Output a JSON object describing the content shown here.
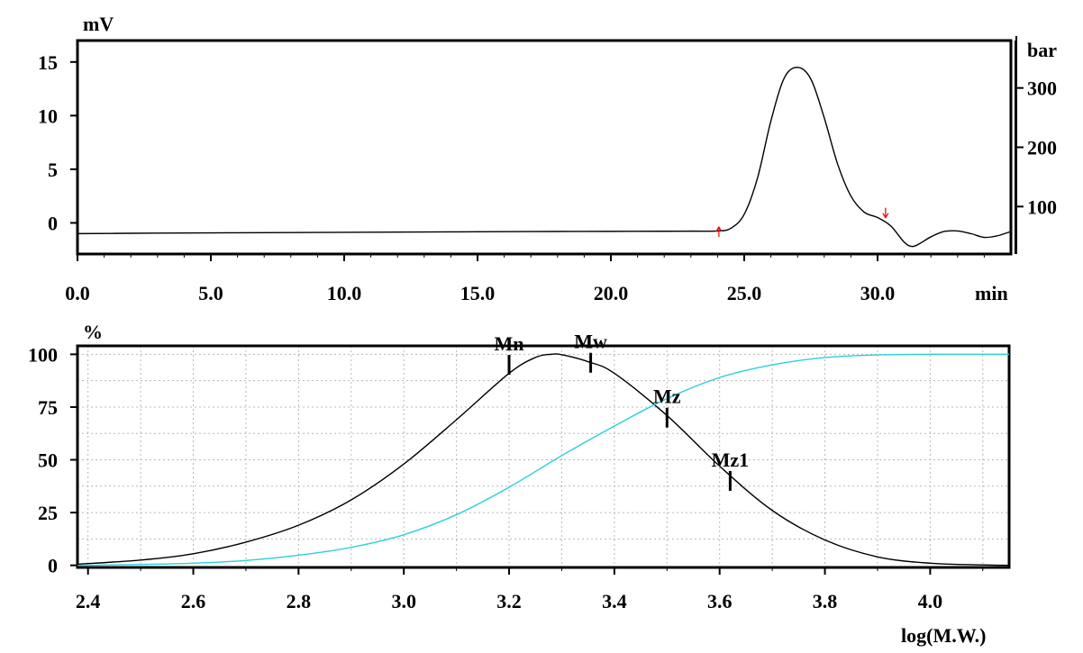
{
  "chart_data": [
    {
      "type": "line",
      "ylabel": "mV",
      "xlabel": "min",
      "y2label": "bar",
      "xlim": [
        0,
        35
      ],
      "ylim": [
        -2.9,
        17
      ],
      "y2lim": [
        20,
        380
      ],
      "xticks": [
        "0.0",
        "5.0",
        "10.0",
        "15.0",
        "20.0",
        "25.0",
        "30.0"
      ],
      "xtick_values": [
        0,
        5,
        10,
        15,
        20,
        25,
        30
      ],
      "yticks": [
        "15",
        "10",
        "5",
        "0"
      ],
      "ytick_values": [
        15,
        10,
        5,
        0
      ],
      "y2ticks": [
        "300",
        "200",
        "100"
      ],
      "y2tick_values": [
        300,
        200,
        100
      ],
      "grid": false,
      "line_color": "#000000",
      "marker_color": "#e00000",
      "peak_markers": [
        {
          "x": 24.05,
          "y": -0.8,
          "direction": "up"
        },
        {
          "x": 30.3,
          "y": 0.4,
          "direction": "down"
        }
      ],
      "series": [
        {
          "x": [
            0,
            2,
            4,
            6,
            8,
            10,
            12,
            14,
            16,
            18,
            20,
            22,
            23,
            24,
            24.5,
            25,
            25.5,
            26,
            26.5,
            27,
            27.5,
            28,
            28.5,
            29,
            29.5,
            30,
            30.5,
            31,
            31.3,
            31.6,
            32,
            32.5,
            33,
            33.5,
            34,
            34.5,
            35
          ],
          "values": [
            -1.0,
            -0.97,
            -0.94,
            -0.92,
            -0.9,
            -0.88,
            -0.86,
            -0.84,
            -0.82,
            -0.8,
            -0.79,
            -0.78,
            -0.77,
            -0.75,
            -0.5,
            0.8,
            4.2,
            9.5,
            13.5,
            14.5,
            13.4,
            9.8,
            5.5,
            2.5,
            1.0,
            0.5,
            -0.3,
            -1.8,
            -2.2,
            -1.9,
            -1.3,
            -0.8,
            -0.75,
            -1.0,
            -1.35,
            -1.2,
            -0.8
          ]
        }
      ]
    },
    {
      "type": "line",
      "ylabel": "%",
      "xlabel": "log(M.W.)",
      "xlim": [
        2.38,
        4.15
      ],
      "ylim": [
        -1,
        104
      ],
      "xticks": [
        "2.4",
        "2.6",
        "2.8",
        "3.0",
        "3.2",
        "3.4",
        "3.6",
        "3.8",
        "4.0"
      ],
      "xtick_values": [
        2.4,
        2.6,
        2.8,
        3.0,
        3.2,
        3.4,
        3.6,
        3.8,
        4.0
      ],
      "yticks": [
        "100",
        "75",
        "50",
        "25",
        "0"
      ],
      "ytick_values": [
        100,
        75,
        50,
        25,
        0
      ],
      "grid": true,
      "markers": [
        {
          "label": "Mn",
          "x": 3.2,
          "y": 95
        },
        {
          "label": "Mw",
          "x": 3.355,
          "y": 96
        },
        {
          "label": "Mz",
          "x": 3.5,
          "y": 70
        },
        {
          "label": "Mz1",
          "x": 3.62,
          "y": 40
        }
      ],
      "series": [
        {
          "color": "#000000",
          "x": [
            2.38,
            2.5,
            2.6,
            2.7,
            2.8,
            2.9,
            3.0,
            3.1,
            3.2,
            3.25,
            3.28,
            3.3,
            3.35,
            3.4,
            3.5,
            3.6,
            3.7,
            3.8,
            3.9,
            4.0,
            4.1,
            4.15
          ],
          "values": [
            0.5,
            2.5,
            5.5,
            11,
            19,
            31,
            48,
            69,
            91,
            98.5,
            100,
            99.8,
            96.5,
            91,
            71,
            47,
            26,
            12,
            4,
            1,
            0.2,
            0
          ]
        },
        {
          "color": "#2ccfdc",
          "x": [
            2.38,
            2.5,
            2.6,
            2.7,
            2.8,
            2.9,
            3.0,
            3.1,
            3.2,
            3.3,
            3.4,
            3.5,
            3.6,
            3.7,
            3.8,
            3.9,
            4.0,
            4.15
          ],
          "values": [
            0,
            0.4,
            1,
            2.3,
            4.8,
            8.5,
            14.5,
            24,
            37,
            52,
            66,
            79,
            89,
            95,
            98.5,
            99.7,
            100,
            100
          ]
        }
      ]
    }
  ]
}
